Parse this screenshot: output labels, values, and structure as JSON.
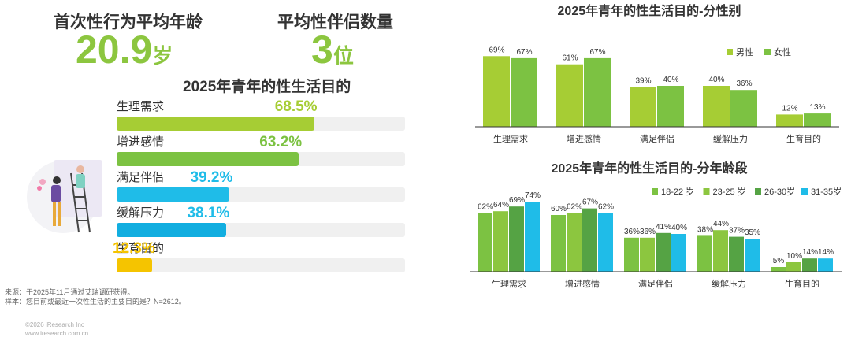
{
  "kpis": {
    "first_age": {
      "label": "首次性行为平均年龄",
      "value": "20.9",
      "unit": "岁"
    },
    "partners": {
      "label": "平均性伴侣数量",
      "value": "3",
      "unit": "位"
    }
  },
  "footer": {
    "source": "来源：于2025年11月通过艾瑞调研获得。",
    "sample": "样本：您目前或最近一次性生活的主要目的是？N=2612。",
    "copyright": "©2026 iResearch Inc",
    "website": "www.iresearch.com.cn"
  },
  "colors": {
    "green_light": "#a6cd34",
    "green_mid": "#7cc242",
    "green_dark": "#55a344",
    "cyan": "#1fbce8",
    "cyan_dark": "#12aee0",
    "yellow": "#f5c400"
  },
  "chart_data": [
    {
      "type": "bar",
      "orientation": "horizontal",
      "title": "2025年青年的性生活目的",
      "categories": [
        "生理需求",
        "增进感情",
        "满足伴侣",
        "缓解压力",
        "生育目的"
      ],
      "values": [
        68.5,
        63.2,
        39.2,
        38.1,
        12.3
      ],
      "value_labels": [
        "68.5%",
        "63.2%",
        "39.2%",
        "38.1%",
        "12.3%"
      ],
      "xlim": [
        0,
        100
      ],
      "bar_colors": [
        "#a6cd34",
        "#7cc242",
        "#1fbce8",
        "#12aee0",
        "#f5c400"
      ]
    },
    {
      "type": "bar",
      "title": "2025年青年的性生活目的-分性别",
      "categories": [
        "生理需求",
        "增进感情",
        "满足伴侣",
        "缓解压力",
        "生育目的"
      ],
      "series": [
        {
          "name": "男性",
          "values": [
            69,
            61,
            39,
            40,
            12
          ],
          "color": "#a6cd34"
        },
        {
          "name": "女性",
          "values": [
            67,
            67,
            40,
            36,
            13
          ],
          "color": "#7cc242"
        }
      ],
      "ylim": [
        0,
        100
      ],
      "legend": "top-right"
    },
    {
      "type": "bar",
      "title": "2025年青年的性生活目的-分年龄段",
      "categories": [
        "生理需求",
        "增进感情",
        "满足伴侣",
        "缓解压力",
        "生育目的"
      ],
      "series": [
        {
          "name": "18-22 岁",
          "values": [
            62,
            60,
            36,
            38,
            5
          ],
          "color": "#7cc242"
        },
        {
          "name": "23-25 岁",
          "values": [
            64,
            62,
            36,
            44,
            10
          ],
          "color": "#8cc63f"
        },
        {
          "name": "26-30岁",
          "values": [
            69,
            67,
            41,
            37,
            14
          ],
          "color": "#55a344"
        },
        {
          "name": "31-35岁",
          "values": [
            74,
            62,
            40,
            35,
            14
          ],
          "color": "#1fbce8"
        }
      ],
      "ylim": [
        0,
        100
      ],
      "legend": "top-right"
    }
  ]
}
